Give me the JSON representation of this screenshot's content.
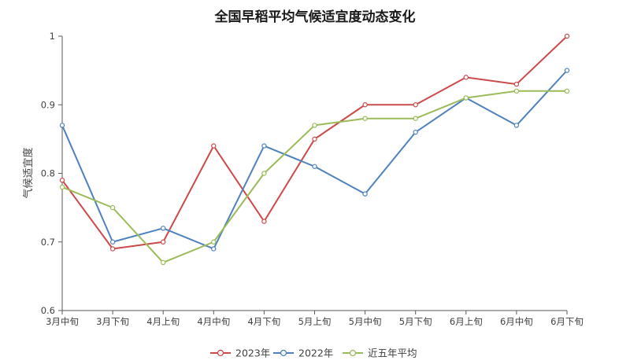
{
  "chart_data": {
    "type": "line",
    "title": "全国早稻平均气候适宜度动态变化",
    "xlabel": "",
    "ylabel": "气候适宜度",
    "categories": [
      "3月中旬",
      "3月下旬",
      "4月上旬",
      "4月中旬",
      "4月下旬",
      "5月上旬",
      "5月中旬",
      "5月下旬",
      "6月上旬",
      "6月中旬",
      "6月下旬"
    ],
    "ylim": [
      0.6,
      1.0
    ],
    "yticks": [
      0.6,
      0.7,
      0.8,
      0.9,
      1
    ],
    "y_tick_labels": [
      "0.6",
      "0.7",
      "0.8",
      "0.9",
      "1"
    ],
    "grid": false,
    "legend_position": "bottom",
    "series": [
      {
        "name": "2023年",
        "color": "#cc4a4a",
        "values": [
          0.79,
          0.69,
          0.7,
          0.84,
          0.73,
          0.85,
          0.9,
          0.9,
          0.94,
          0.93,
          1.0
        ]
      },
      {
        "name": "2022年",
        "color": "#4f81bd",
        "values": [
          0.87,
          0.7,
          0.72,
          0.69,
          0.84,
          0.81,
          0.77,
          0.86,
          0.91,
          0.87,
          0.95
        ]
      },
      {
        "name": "近五年平均",
        "color": "#9bbb59",
        "values": [
          0.78,
          0.75,
          0.67,
          0.7,
          0.8,
          0.87,
          0.88,
          0.88,
          0.91,
          0.92,
          0.92
        ]
      }
    ]
  }
}
